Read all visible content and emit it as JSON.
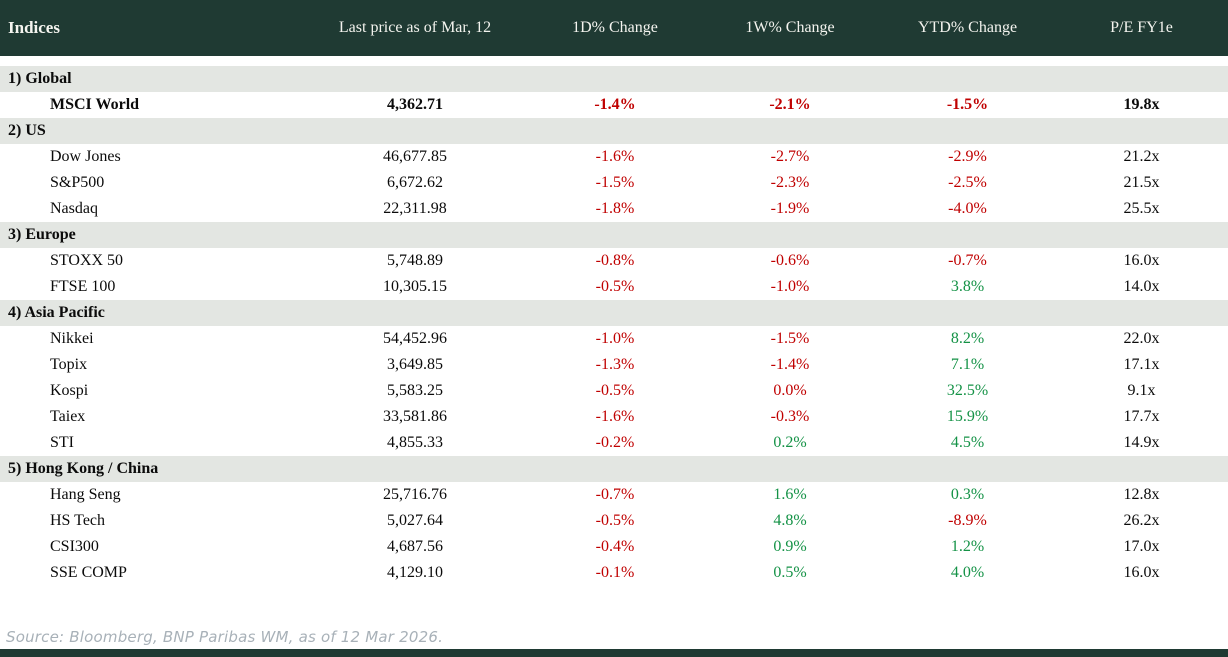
{
  "header": {
    "columns": [
      "Indices",
      "Last price as of Mar, 12",
      "1D% Change",
      "1W% Change",
      "YTD% Change",
      "P/E FY1e"
    ]
  },
  "sections": [
    {
      "label": "1) Global",
      "rows": [
        {
          "name": "MSCI World",
          "price": "4,362.71",
          "bold": true,
          "changes": [
            {
              "text": "-1.4%",
              "color": "neg"
            },
            {
              "text": "-2.1%",
              "color": "neg"
            },
            {
              "text": "-1.5%",
              "color": "neg"
            }
          ],
          "pe": "19.8x"
        }
      ]
    },
    {
      "label": "2) US",
      "rows": [
        {
          "name": "Dow Jones",
          "price": "46,677.85",
          "bold": false,
          "changes": [
            {
              "text": "-1.6%",
              "color": "neg"
            },
            {
              "text": "-2.7%",
              "color": "neg"
            },
            {
              "text": "-2.9%",
              "color": "neg"
            }
          ],
          "pe": "21.2x"
        },
        {
          "name": "S&P500",
          "price": "6,672.62",
          "bold": false,
          "changes": [
            {
              "text": "-1.5%",
              "color": "neg"
            },
            {
              "text": "-2.3%",
              "color": "neg"
            },
            {
              "text": "-2.5%",
              "color": "neg"
            }
          ],
          "pe": "21.5x"
        },
        {
          "name": "Nasdaq",
          "price": "22,311.98",
          "bold": false,
          "changes": [
            {
              "text": "-1.8%",
              "color": "neg"
            },
            {
              "text": "-1.9%",
              "color": "neg"
            },
            {
              "text": "-4.0%",
              "color": "neg"
            }
          ],
          "pe": "25.5x"
        }
      ]
    },
    {
      "label": "3) Europe",
      "rows": [
        {
          "name": "STOXX 50",
          "price": "5,748.89",
          "bold": false,
          "changes": [
            {
              "text": "-0.8%",
              "color": "neg"
            },
            {
              "text": "-0.6%",
              "color": "neg"
            },
            {
              "text": "-0.7%",
              "color": "neg"
            }
          ],
          "pe": "16.0x"
        },
        {
          "name": "FTSE 100",
          "price": "10,305.15",
          "bold": false,
          "changes": [
            {
              "text": "-0.5%",
              "color": "neg"
            },
            {
              "text": "-1.0%",
              "color": "neg"
            },
            {
              "text": "3.8%",
              "color": "pos"
            }
          ],
          "pe": "14.0x"
        }
      ]
    },
    {
      "label": "4) Asia Pacific",
      "rows": [
        {
          "name": "Nikkei",
          "price": "54,452.96",
          "bold": false,
          "changes": [
            {
              "text": "-1.0%",
              "color": "neg"
            },
            {
              "text": "-1.5%",
              "color": "neg"
            },
            {
              "text": "8.2%",
              "color": "pos"
            }
          ],
          "pe": "22.0x"
        },
        {
          "name": "Topix",
          "price": "3,649.85",
          "bold": false,
          "changes": [
            {
              "text": "-1.3%",
              "color": "neg"
            },
            {
              "text": "-1.4%",
              "color": "neg"
            },
            {
              "text": "7.1%",
              "color": "pos"
            }
          ],
          "pe": "17.1x"
        },
        {
          "name": "Kospi",
          "price": "5,583.25",
          "bold": false,
          "changes": [
            {
              "text": "-0.5%",
              "color": "neg"
            },
            {
              "text": "0.0%",
              "color": "neg"
            },
            {
              "text": "32.5%",
              "color": "pos"
            }
          ],
          "pe": "9.1x"
        },
        {
          "name": "Taiex",
          "price": "33,581.86",
          "bold": false,
          "changes": [
            {
              "text": "-1.6%",
              "color": "neg"
            },
            {
              "text": "-0.3%",
              "color": "neg"
            },
            {
              "text": "15.9%",
              "color": "pos"
            }
          ],
          "pe": "17.7x"
        },
        {
          "name": "STI",
          "price": "4,855.33",
          "bold": false,
          "changes": [
            {
              "text": "-0.2%",
              "color": "neg"
            },
            {
              "text": "0.2%",
              "color": "pos"
            },
            {
              "text": "4.5%",
              "color": "pos"
            }
          ],
          "pe": "14.9x"
        }
      ]
    },
    {
      "label": "5) Hong Kong / China",
      "rows": [
        {
          "name": "Hang Seng",
          "price": "25,716.76",
          "bold": false,
          "changes": [
            {
              "text": "-0.7%",
              "color": "neg"
            },
            {
              "text": "1.6%",
              "color": "pos"
            },
            {
              "text": "0.3%",
              "color": "pos"
            }
          ],
          "pe": "12.8x"
        },
        {
          "name": "HS Tech",
          "price": "5,027.64",
          "bold": false,
          "changes": [
            {
              "text": "-0.5%",
              "color": "neg"
            },
            {
              "text": "4.8%",
              "color": "pos"
            },
            {
              "text": "-8.9%",
              "color": "neg"
            }
          ],
          "pe": "26.2x"
        },
        {
          "name": "CSI300",
          "price": "4,687.56",
          "bold": false,
          "changes": [
            {
              "text": "-0.4%",
              "color": "neg"
            },
            {
              "text": "0.9%",
              "color": "pos"
            },
            {
              "text": "1.2%",
              "color": "pos"
            }
          ],
          "pe": "17.0x"
        },
        {
          "name": "SSE COMP",
          "price": "4,129.10",
          "bold": false,
          "changes": [
            {
              "text": "-0.1%",
              "color": "neg"
            },
            {
              "text": "0.5%",
              "color": "pos"
            },
            {
              "text": "4.0%",
              "color": "pos"
            }
          ],
          "pe": "16.0x"
        }
      ]
    }
  ],
  "footer": {
    "source": "Source: Bloomberg, BNP Paribas WM, as of 12 Mar 2026."
  },
  "colors": {
    "header_bg": "#1f3a33",
    "header_text": "#f4f4ef",
    "section_bg": "#e3e6e2",
    "row_bg": "#ffffff",
    "negative": "#c00000",
    "positive": "#149246",
    "text": "#0b0b0b",
    "source_text": "#a8b1b8",
    "bottom_bar": "#1f3a33"
  },
  "chart_data": {
    "type": "table",
    "title": "Indices",
    "columns": [
      "Indices",
      "Last price as of Mar, 12",
      "1D% Change",
      "1W% Change",
      "YTD% Change",
      "P/E FY1e"
    ],
    "rows": [
      [
        "1) Global",
        "",
        "",
        "",
        "",
        ""
      ],
      [
        "MSCI World",
        "4,362.71",
        "-1.4%",
        "-2.1%",
        "-1.5%",
        "19.8x"
      ],
      [
        "2) US",
        "",
        "",
        "",
        "",
        ""
      ],
      [
        "Dow Jones",
        "46,677.85",
        "-1.6%",
        "-2.7%",
        "-2.9%",
        "21.2x"
      ],
      [
        "S&P500",
        "6,672.62",
        "-1.5%",
        "-2.3%",
        "-2.5%",
        "21.5x"
      ],
      [
        "Nasdaq",
        "22,311.98",
        "-1.8%",
        "-1.9%",
        "-4.0%",
        "25.5x"
      ],
      [
        "3) Europe",
        "",
        "",
        "",
        "",
        ""
      ],
      [
        "STOXX 50",
        "5,748.89",
        "-0.8%",
        "-0.6%",
        "-0.7%",
        "16.0x"
      ],
      [
        "FTSE 100",
        "10,305.15",
        "-0.5%",
        "-1.0%",
        "3.8%",
        "14.0x"
      ],
      [
        "4) Asia Pacific",
        "",
        "",
        "",
        "",
        ""
      ],
      [
        "Nikkei",
        "54,452.96",
        "-1.0%",
        "-1.5%",
        "8.2%",
        "22.0x"
      ],
      [
        "Topix",
        "3,649.85",
        "-1.3%",
        "-1.4%",
        "7.1%",
        "17.1x"
      ],
      [
        "Kospi",
        "5,583.25",
        "-0.5%",
        "0.0%",
        "32.5%",
        "9.1x"
      ],
      [
        "Taiex",
        "33,581.86",
        "-1.6%",
        "-0.3%",
        "15.9%",
        "17.7x"
      ],
      [
        "STI",
        "4,855.33",
        "-0.2%",
        "0.2%",
        "4.5%",
        "14.9x"
      ],
      [
        "5) Hong Kong / China",
        "",
        "",
        "",
        "",
        ""
      ],
      [
        "Hang Seng",
        "25,716.76",
        "-0.7%",
        "1.6%",
        "0.3%",
        "12.8x"
      ],
      [
        "HS Tech",
        "5,027.64",
        "-0.5%",
        "4.8%",
        "-8.9%",
        "26.2x"
      ],
      [
        "CSI300",
        "4,687.56",
        "-0.4%",
        "0.9%",
        "1.2%",
        "17.0x"
      ],
      [
        "SSE COMP",
        "4,129.10",
        "-0.1%",
        "0.5%",
        "4.0%",
        "16.0x"
      ]
    ],
    "notes": "Negative changes shown in red, positive in green; MSCI World row bolded; source line: Source: Bloomberg, BNP Paribas WM, as of 12 Mar 2026."
  }
}
